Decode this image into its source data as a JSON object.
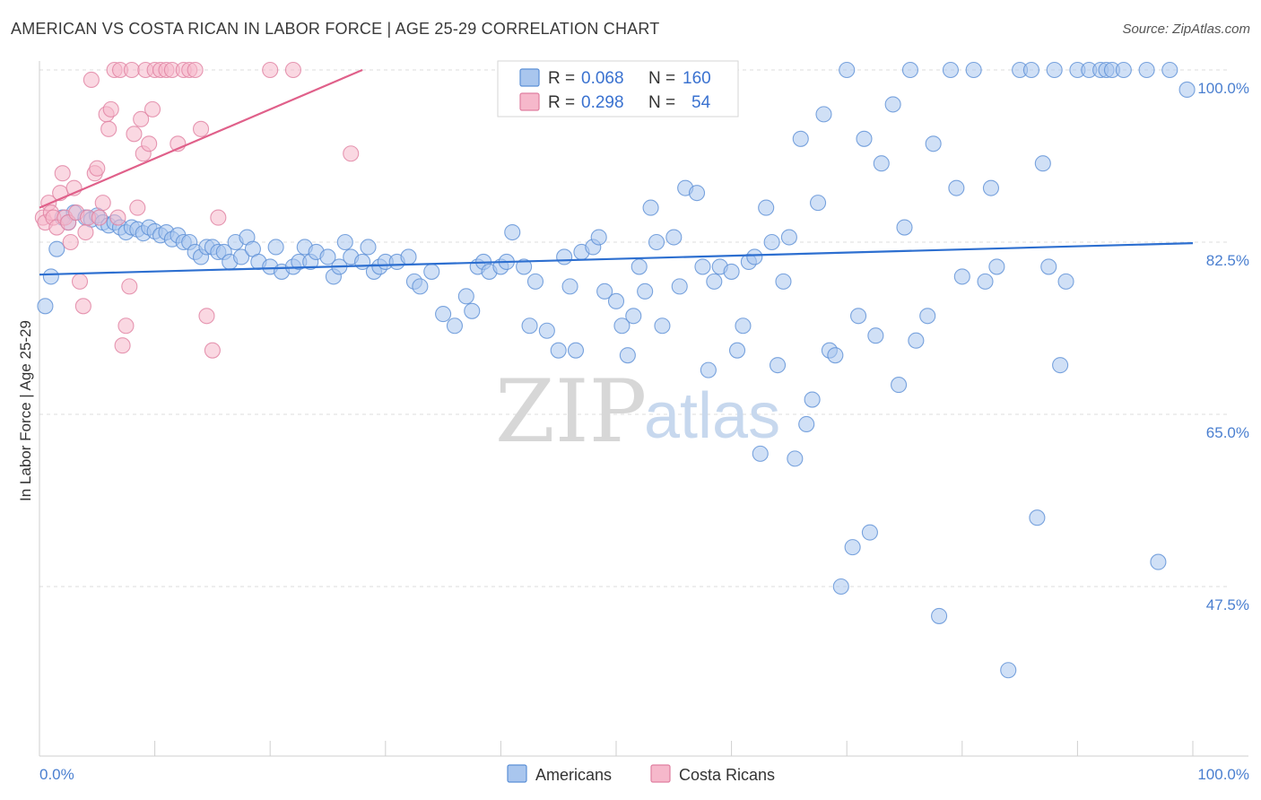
{
  "header": {
    "title": "AMERICAN VS COSTA RICAN IN LABOR FORCE | AGE 25-29 CORRELATION CHART",
    "source": "Source: ZipAtlas.com"
  },
  "watermark": {
    "zip": "ZIP",
    "atlas": "atlas"
  },
  "colors": {
    "americans_fill": "#a9c6ee",
    "americans_stroke": "#5b8fd6",
    "americans_line": "#2d6fd0",
    "costa_fill": "#f6b8cb",
    "costa_stroke": "#e07fa0",
    "costa_line": "#e0608a",
    "grid": "#dcdcdc",
    "tick_text": "#4a7fd0"
  },
  "legend": {
    "rows": [
      {
        "r_label": "R = ",
        "r_value": "0.068",
        "n_label": "N = ",
        "n_value": "160"
      },
      {
        "r_label": "R = ",
        "r_value": "0.298",
        "n_label": "N = ",
        "n_value": "54"
      }
    ]
  },
  "bottom_legend": [
    "Americans",
    "Costa Ricans"
  ],
  "chart_data": {
    "type": "scatter",
    "title": "AMERICAN VS COSTA RICAN IN LABOR FORCE | AGE 25-29 CORRELATION CHART",
    "xlabel": "",
    "ylabel": "In Labor Force | Age 25-29",
    "xlim": [
      0,
      100
    ],
    "ylim": [
      33,
      102
    ],
    "x_tick_labels": [
      "0.0%",
      "100.0%"
    ],
    "y_ticks": [
      47.5,
      65.0,
      82.5,
      100.0
    ],
    "y_tick_labels": [
      "47.5%",
      "65.0%",
      "82.5%",
      "100.0%"
    ],
    "grid": true,
    "legend_position": "top-center",
    "series": [
      {
        "name": "Americans",
        "r": 0.068,
        "n": 160,
        "trend": [
          [
            0,
            79.2
          ],
          [
            100,
            82.4
          ]
        ],
        "points": [
          [
            0.5,
            76
          ],
          [
            1.0,
            79
          ],
          [
            1.5,
            81.8
          ],
          [
            2,
            85
          ],
          [
            2.5,
            84.5
          ],
          [
            3,
            85.5
          ],
          [
            4,
            85
          ],
          [
            4.5,
            84.8
          ],
          [
            5,
            85.2
          ],
          [
            5.5,
            84.5
          ],
          [
            6,
            84.2
          ],
          [
            6.5,
            84.5
          ],
          [
            7,
            84
          ],
          [
            7.5,
            83.5
          ],
          [
            8,
            84
          ],
          [
            8.5,
            83.8
          ],
          [
            9,
            83.4
          ],
          [
            9.5,
            84
          ],
          [
            10,
            83.6
          ],
          [
            10.5,
            83.2
          ],
          [
            11,
            83.5
          ],
          [
            11.5,
            82.8
          ],
          [
            12,
            83.2
          ],
          [
            12.5,
            82.5
          ],
          [
            13,
            82.5
          ],
          [
            13.5,
            81.5
          ],
          [
            14,
            81
          ],
          [
            14.5,
            82
          ],
          [
            15,
            82
          ],
          [
            15.5,
            81.5
          ],
          [
            16,
            81.5
          ],
          [
            16.5,
            80.5
          ],
          [
            17,
            82.5
          ],
          [
            17.5,
            81
          ],
          [
            18,
            83
          ],
          [
            18.5,
            81.8
          ],
          [
            19,
            80.5
          ],
          [
            20,
            80
          ],
          [
            20.5,
            82
          ],
          [
            21,
            79.5
          ],
          [
            22,
            80
          ],
          [
            22.5,
            80.5
          ],
          [
            23,
            82
          ],
          [
            23.5,
            80.5
          ],
          [
            24,
            81.5
          ],
          [
            25,
            81
          ],
          [
            25.5,
            79
          ],
          [
            26,
            80
          ],
          [
            26.5,
            82.5
          ],
          [
            27,
            81
          ],
          [
            28,
            80.5
          ],
          [
            28.5,
            82
          ],
          [
            29,
            79.5
          ],
          [
            29.5,
            80
          ],
          [
            30,
            80.5
          ],
          [
            31,
            80.5
          ],
          [
            32,
            81
          ],
          [
            32.5,
            78.5
          ],
          [
            33,
            78
          ],
          [
            34,
            79.5
          ],
          [
            35,
            75.2
          ],
          [
            36,
            74
          ],
          [
            37,
            77
          ],
          [
            37.5,
            75.5
          ],
          [
            38,
            80
          ],
          [
            38.5,
            80.5
          ],
          [
            39,
            79.5
          ],
          [
            40,
            80
          ],
          [
            40.5,
            80.5
          ],
          [
            41,
            83.5
          ],
          [
            42,
            80
          ],
          [
            42.5,
            74
          ],
          [
            43,
            78.5
          ],
          [
            44,
            73.5
          ],
          [
            45,
            71.5
          ],
          [
            45.5,
            81
          ],
          [
            46,
            78
          ],
          [
            46.5,
            71.5
          ],
          [
            47,
            81.5
          ],
          [
            48,
            82
          ],
          [
            48.5,
            83
          ],
          [
            49,
            77.5
          ],
          [
            50,
            76.5
          ],
          [
            50.5,
            74
          ],
          [
            51,
            71
          ],
          [
            51.5,
            75
          ],
          [
            52,
            80
          ],
          [
            52.5,
            77.5
          ],
          [
            53,
            86
          ],
          [
            53.5,
            82.5
          ],
          [
            54,
            74
          ],
          [
            55,
            83
          ],
          [
            55.5,
            78
          ],
          [
            56,
            88
          ],
          [
            57,
            87.5
          ],
          [
            57.5,
            80
          ],
          [
            58,
            69.5
          ],
          [
            58.5,
            78.5
          ],
          [
            59,
            80
          ],
          [
            60,
            79.5
          ],
          [
            60.5,
            71.5
          ],
          [
            61,
            74
          ],
          [
            61.5,
            80.5
          ],
          [
            62,
            81
          ],
          [
            62.5,
            61
          ],
          [
            63,
            86
          ],
          [
            63.5,
            82.5
          ],
          [
            64,
            70
          ],
          [
            64.5,
            78.5
          ],
          [
            65,
            83
          ],
          [
            65.5,
            60.5
          ],
          [
            66,
            93
          ],
          [
            66.5,
            64
          ],
          [
            67,
            66.5
          ],
          [
            67.5,
            86.5
          ],
          [
            68,
            95.5
          ],
          [
            68.5,
            71.5
          ],
          [
            69,
            71
          ],
          [
            69.5,
            47.5
          ],
          [
            70,
            100
          ],
          [
            70.5,
            51.5
          ],
          [
            71,
            75
          ],
          [
            71.5,
            93
          ],
          [
            72,
            53
          ],
          [
            72.5,
            73
          ],
          [
            73,
            90.5
          ],
          [
            74,
            96.5
          ],
          [
            74.5,
            68
          ],
          [
            75,
            84
          ],
          [
            75.5,
            100
          ],
          [
            76,
            72.5
          ],
          [
            77,
            75
          ],
          [
            77.5,
            92.5
          ],
          [
            78,
            44.5
          ],
          [
            79,
            100
          ],
          [
            79.5,
            88
          ],
          [
            80,
            79
          ],
          [
            81,
            100
          ],
          [
            82,
            78.5
          ],
          [
            82.5,
            88
          ],
          [
            83,
            80
          ],
          [
            84,
            39
          ],
          [
            85,
            100
          ],
          [
            86,
            100
          ],
          [
            86.5,
            54.5
          ],
          [
            87,
            90.5
          ],
          [
            87.5,
            80
          ],
          [
            88,
            100
          ],
          [
            88.5,
            70
          ],
          [
            89,
            78.5
          ],
          [
            90,
            100
          ],
          [
            91,
            100
          ],
          [
            92,
            100
          ],
          [
            92.5,
            100
          ],
          [
            93,
            100
          ],
          [
            94,
            100
          ],
          [
            96,
            100
          ],
          [
            97,
            50
          ],
          [
            98,
            100
          ],
          [
            99.5,
            98
          ]
        ]
      },
      {
        "name": "Costa Ricans",
        "r": 0.298,
        "n": 54,
        "trend": [
          [
            0,
            86
          ],
          [
            28,
            100
          ]
        ],
        "points": [
          [
            0.3,
            85
          ],
          [
            0.5,
            84.5
          ],
          [
            0.8,
            86.5
          ],
          [
            1,
            85.5
          ],
          [
            1.2,
            85
          ],
          [
            1.5,
            84
          ],
          [
            1.8,
            87.5
          ],
          [
            2,
            89.5
          ],
          [
            2.2,
            85
          ],
          [
            2.5,
            84.5
          ],
          [
            2.7,
            82.5
          ],
          [
            3,
            88
          ],
          [
            3.2,
            85.5
          ],
          [
            3.5,
            78.5
          ],
          [
            3.8,
            76
          ],
          [
            4,
            83.5
          ],
          [
            4.2,
            85
          ],
          [
            4.5,
            99
          ],
          [
            4.8,
            89.5
          ],
          [
            5,
            90
          ],
          [
            5.2,
            85
          ],
          [
            5.5,
            86.5
          ],
          [
            5.8,
            95.5
          ],
          [
            6,
            94
          ],
          [
            6.2,
            96
          ],
          [
            6.5,
            100
          ],
          [
            6.8,
            85
          ],
          [
            7,
            100
          ],
          [
            7.2,
            72
          ],
          [
            7.5,
            74
          ],
          [
            7.8,
            78
          ],
          [
            8,
            100
          ],
          [
            8.2,
            93.5
          ],
          [
            8.5,
            86
          ],
          [
            8.8,
            95
          ],
          [
            9,
            91.5
          ],
          [
            9.2,
            100
          ],
          [
            9.5,
            92.5
          ],
          [
            9.8,
            96
          ],
          [
            10,
            100
          ],
          [
            10.5,
            100
          ],
          [
            11,
            100
          ],
          [
            11.5,
            100
          ],
          [
            12,
            92.5
          ],
          [
            12.5,
            100
          ],
          [
            13,
            100
          ],
          [
            13.5,
            100
          ],
          [
            14,
            94
          ],
          [
            14.5,
            75
          ],
          [
            15,
            71.5
          ],
          [
            15.5,
            85
          ],
          [
            20,
            100
          ],
          [
            22,
            100
          ],
          [
            27,
            91.5
          ]
        ]
      }
    ]
  }
}
